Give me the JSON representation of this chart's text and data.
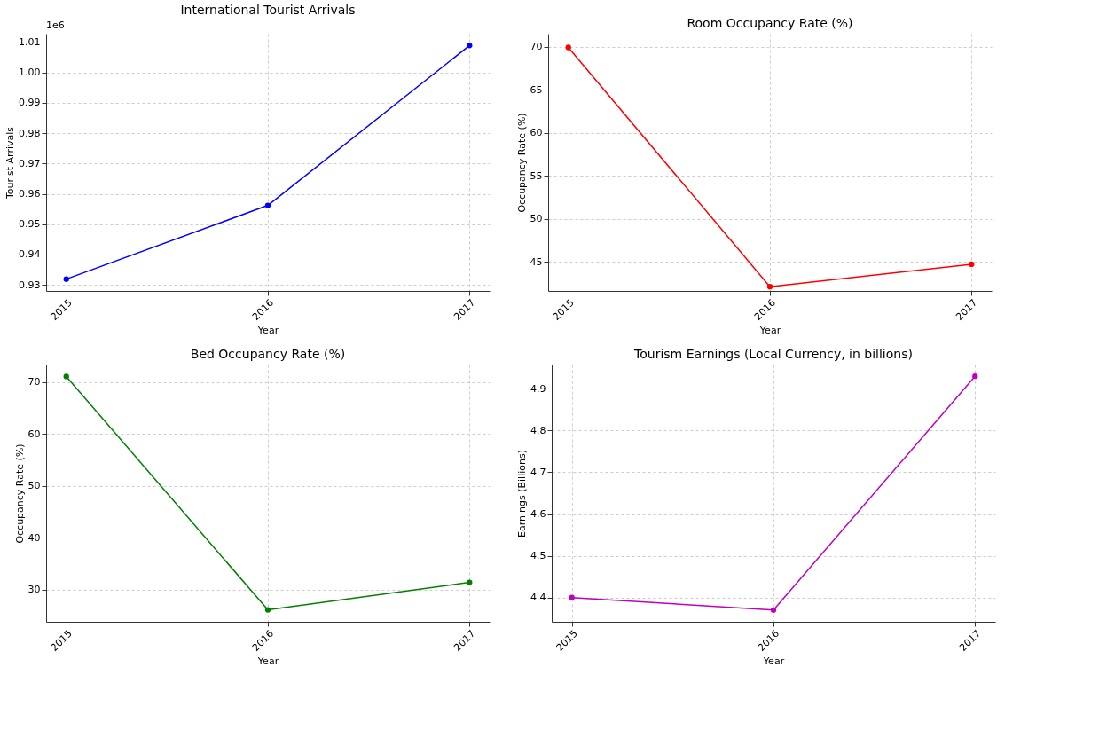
{
  "chart_data": [
    {
      "type": "line",
      "title": "International Tourist Arrivals",
      "xlabel": "Year",
      "ylabel": "Tourist Arrivals",
      "categories": [
        "2015",
        "2016",
        "2017"
      ],
      "series": [
        {
          "color": "#0000ff",
          "values": [
            0.9319,
            0.9562,
            1.0089
          ]
        }
      ],
      "ylim": [
        0.928,
        1.0128
      ],
      "yticks": [
        {
          "value": 0.93,
          "label": "0.93"
        },
        {
          "value": 0.94,
          "label": "0.94"
        },
        {
          "value": 0.95,
          "label": "0.95"
        },
        {
          "value": 0.96,
          "label": "0.96"
        },
        {
          "value": 0.97,
          "label": "0.97"
        },
        {
          "value": 0.98,
          "label": "0.98"
        },
        {
          "value": 0.99,
          "label": "0.99"
        },
        {
          "value": 1.0,
          "label": "1.00"
        },
        {
          "value": 1.01,
          "label": "1.01"
        }
      ],
      "annotations": [
        "1e6"
      ],
      "grid": true,
      "marker": "circle"
    },
    {
      "type": "line",
      "title": "Room Occupancy Rate (%)",
      "xlabel": "Year",
      "ylabel": "Occupancy Rate (%)",
      "categories": [
        "2015",
        "2016",
        "2017"
      ],
      "series": [
        {
          "color": "#ff0000",
          "values": [
            69.9,
            42.1,
            44.7
          ]
        }
      ],
      "ylim": [
        41.6,
        71.5
      ],
      "yticks": [
        45,
        50,
        55,
        60,
        65,
        70
      ],
      "grid": true,
      "marker": "circle"
    },
    {
      "type": "line",
      "title": "Bed Occupancy Rate (%)",
      "xlabel": "Year",
      "ylabel": "Occupancy Rate (%)",
      "categories": [
        "2015",
        "2016",
        "2017"
      ],
      "series": [
        {
          "color": "#008000",
          "values": [
            71.1,
            26.1,
            31.4
          ]
        }
      ],
      "ylim": [
        23.8,
        73.4
      ],
      "yticks": [
        30,
        40,
        50,
        60,
        70
      ],
      "grid": true,
      "marker": "circle"
    },
    {
      "type": "line",
      "title": "Tourism Earnings (Local Currency, in billions)",
      "xlabel": "Year",
      "ylabel": "Earnings (Billions)",
      "categories": [
        "2015",
        "2016",
        "2017"
      ],
      "series": [
        {
          "color": "#bf00bf",
          "values": [
            4.4,
            4.37,
            4.93
          ]
        }
      ],
      "ylim": [
        4.342,
        4.958
      ],
      "yticks": [
        {
          "value": 4.4,
          "label": "4.4"
        },
        {
          "value": 4.5,
          "label": "4.5"
        },
        {
          "value": 4.6,
          "label": "4.6"
        },
        {
          "value": 4.7,
          "label": "4.7"
        },
        {
          "value": 4.8,
          "label": "4.8"
        },
        {
          "value": 4.9,
          "label": "4.9"
        }
      ],
      "grid": true,
      "marker": "circle"
    }
  ]
}
